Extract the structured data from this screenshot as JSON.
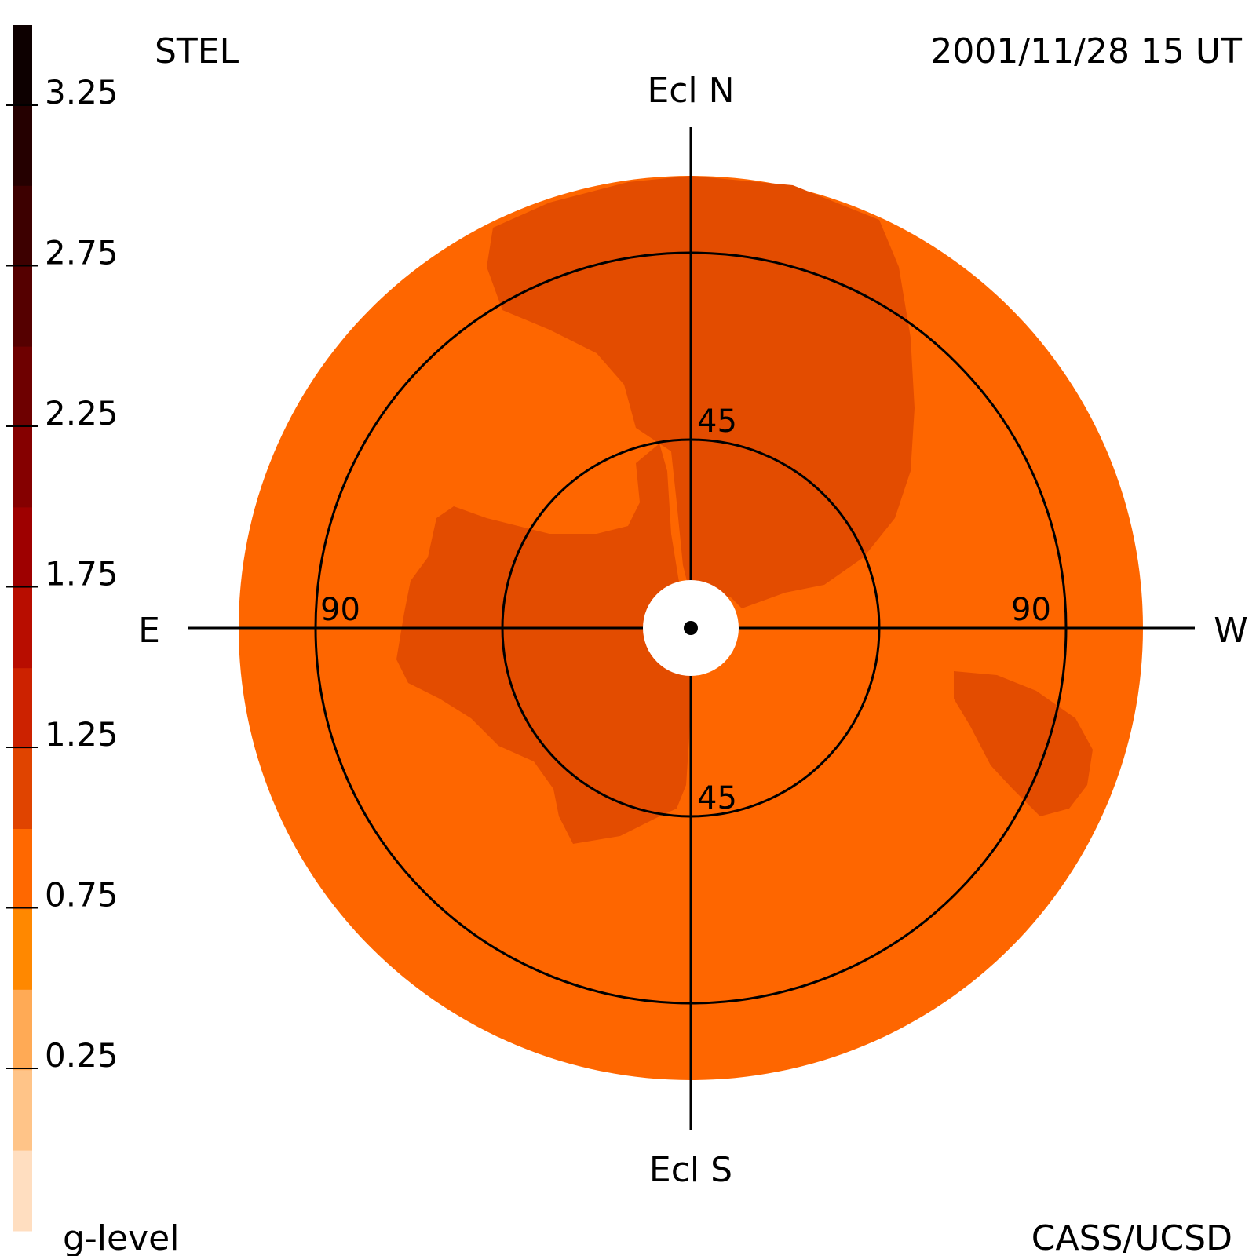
{
  "header": {
    "station": "STEL",
    "timestamp": "2001/11/28 15 UT"
  },
  "footer": {
    "scale_title": "g-level",
    "credit": "CASS/UCSD"
  },
  "directions": {
    "north": "Ecl N",
    "south": "Ecl S",
    "east": "E",
    "west": "W"
  },
  "elongation_labels": {
    "inner_top": "45",
    "inner_bottom": "45",
    "outer_left": "90",
    "outer_right": "90"
  },
  "color_scale": {
    "tick_labels": [
      "3.25",
      "2.75",
      "2.25",
      "1.75",
      "1.25",
      "0.75",
      "0.25"
    ],
    "bands_top_to_bottom": [
      "#0d0000",
      "#250000",
      "#3d0000",
      "#550000",
      "#6e0000",
      "#850000",
      "#9e0000",
      "#b80d00",
      "#cc2200",
      "#e04400",
      "#ff6800",
      "#ff8800",
      "#ffaa55",
      "#ffc488",
      "#ffdec0"
    ]
  },
  "map_colors": {
    "background_level": "#fe6600",
    "enhanced_level": "#e34c00",
    "sun_occulter": "#ffffff"
  }
}
